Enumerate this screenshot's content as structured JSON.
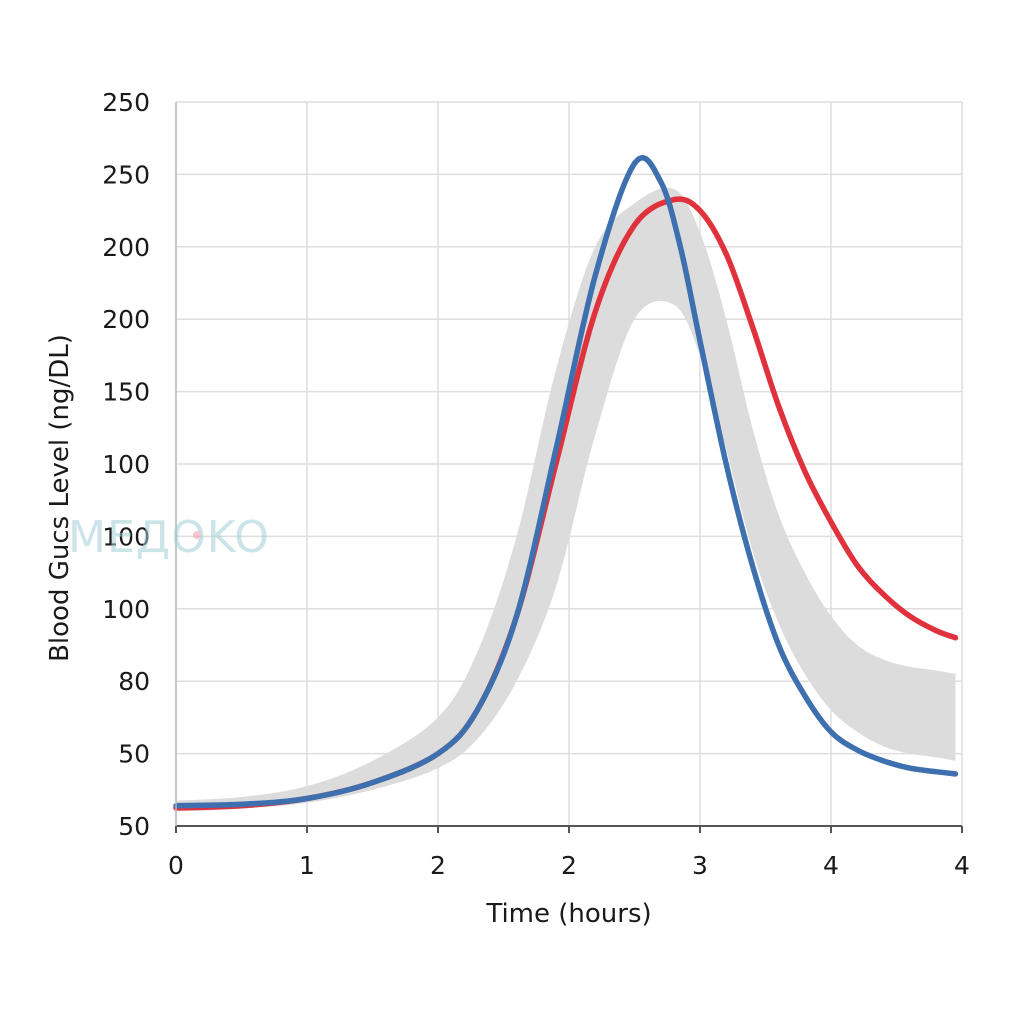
{
  "chart_data": {
    "type": "line",
    "title": "",
    "xlabel": "Time (hours)",
    "ylabel": "Blood Gucs Level (ng/DL)",
    "x_tick_labels": [
      "0",
      "1",
      "2",
      "2",
      "3",
      "4",
      "4"
    ],
    "y_tick_labels": [
      "250",
      "250",
      "200",
      "200",
      "150",
      "100",
      "100",
      "100",
      "80",
      "50",
      "50"
    ],
    "xlim": [
      0,
      6
    ],
    "ylim": [
      0,
      10
    ],
    "grid": true,
    "legend": "none",
    "series": [
      {
        "color": "#e0323c",
        "x": [
          0,
          0.5,
          1,
          1.5,
          2,
          2.3,
          2.6,
          2.9,
          3.2,
          3.5,
          3.8,
          4.0,
          4.2,
          4.4,
          4.6,
          4.8,
          5.0,
          5.2,
          5.4,
          5.6,
          5.8,
          5.95
        ],
        "y": [
          0.25,
          0.28,
          0.38,
          0.6,
          1.0,
          1.6,
          2.9,
          5.0,
          7.1,
          8.3,
          8.65,
          8.5,
          7.9,
          6.9,
          5.8,
          4.9,
          4.2,
          3.6,
          3.2,
          2.9,
          2.7,
          2.6
        ]
      },
      {
        "color": "#3e6fae",
        "x": [
          0,
          0.5,
          1,
          1.5,
          2,
          2.3,
          2.6,
          2.9,
          3.2,
          3.5,
          3.7,
          3.85,
          4.0,
          4.2,
          4.4,
          4.6,
          4.8,
          5.0,
          5.2,
          5.4,
          5.6,
          5.8,
          5.95
        ],
        "y": [
          0.28,
          0.3,
          0.38,
          0.6,
          1.0,
          1.6,
          2.9,
          5.2,
          7.6,
          9.15,
          8.9,
          8.0,
          6.7,
          5.0,
          3.6,
          2.5,
          1.8,
          1.3,
          1.05,
          0.9,
          0.8,
          0.75,
          0.72
        ]
      }
    ],
    "band": {
      "color": "#dcdcdc",
      "x": [
        0,
        0.5,
        1,
        1.5,
        2,
        2.3,
        2.6,
        2.9,
        3.2,
        3.5,
        3.8,
        4.0,
        4.2,
        4.4,
        4.6,
        4.8,
        5.0,
        5.2,
        5.4,
        5.6,
        5.8,
        5.95
      ],
      "upper": [
        0.35,
        0.4,
        0.55,
        0.9,
        1.5,
        2.4,
        4.0,
        6.3,
        8.0,
        8.6,
        8.8,
        8.2,
        7.0,
        5.5,
        4.3,
        3.5,
        2.9,
        2.5,
        2.3,
        2.2,
        2.15,
        2.1
      ],
      "lower": [
        0.2,
        0.24,
        0.32,
        0.5,
        0.8,
        1.2,
        2.0,
        3.3,
        5.4,
        7.0,
        7.2,
        6.5,
        5.2,
        3.8,
        2.8,
        2.1,
        1.6,
        1.3,
        1.1,
        1.0,
        0.95,
        0.9
      ]
    },
    "watermark": "MEДOKO"
  }
}
